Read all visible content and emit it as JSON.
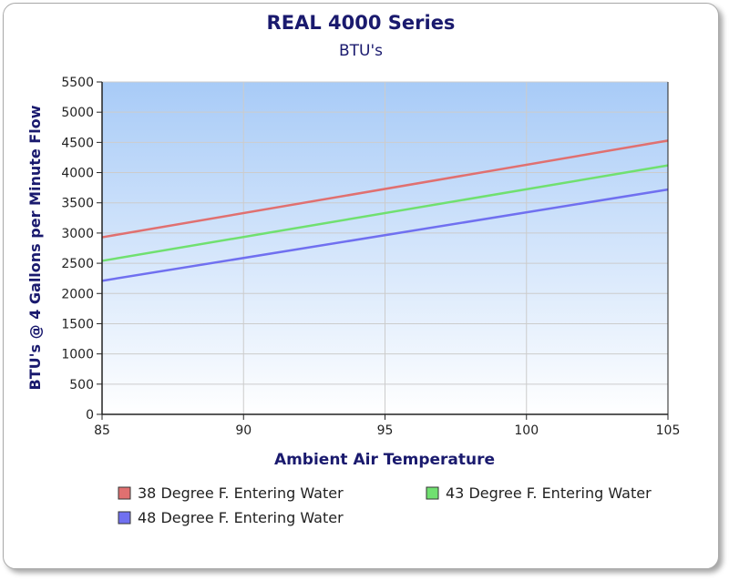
{
  "chart_data": {
    "type": "line",
    "title": "REAL 4000 Series",
    "subtitle": "BTU's",
    "xlabel": "Ambient Air Temperature",
    "ylabel": "BTU's @ 4 Gallons per Minute Flow",
    "xlim": [
      85,
      105
    ],
    "ylim": [
      0,
      5500
    ],
    "xticks": [
      85,
      90,
      95,
      100,
      105
    ],
    "yticks": [
      0,
      500,
      1000,
      1500,
      2000,
      2500,
      3000,
      3500,
      4000,
      4500,
      5000,
      5500
    ],
    "grid": true,
    "legend_placement": "bottom",
    "background_gradient": [
      "#a8cbf7",
      "#ffffff"
    ],
    "series": [
      {
        "name": "38 Degree F. Entering Water",
        "color": "#e07070",
        "x": [
          85,
          105
        ],
        "y": [
          2930,
          4530
        ]
      },
      {
        "name": "43 Degree F. Entering Water",
        "color": "#70e070",
        "x": [
          85,
          105
        ],
        "y": [
          2540,
          4120
        ]
      },
      {
        "name": "48 Degree F. Entering Water",
        "color": "#7070f0",
        "x": [
          85,
          105
        ],
        "y": [
          2210,
          3720
        ]
      }
    ]
  }
}
